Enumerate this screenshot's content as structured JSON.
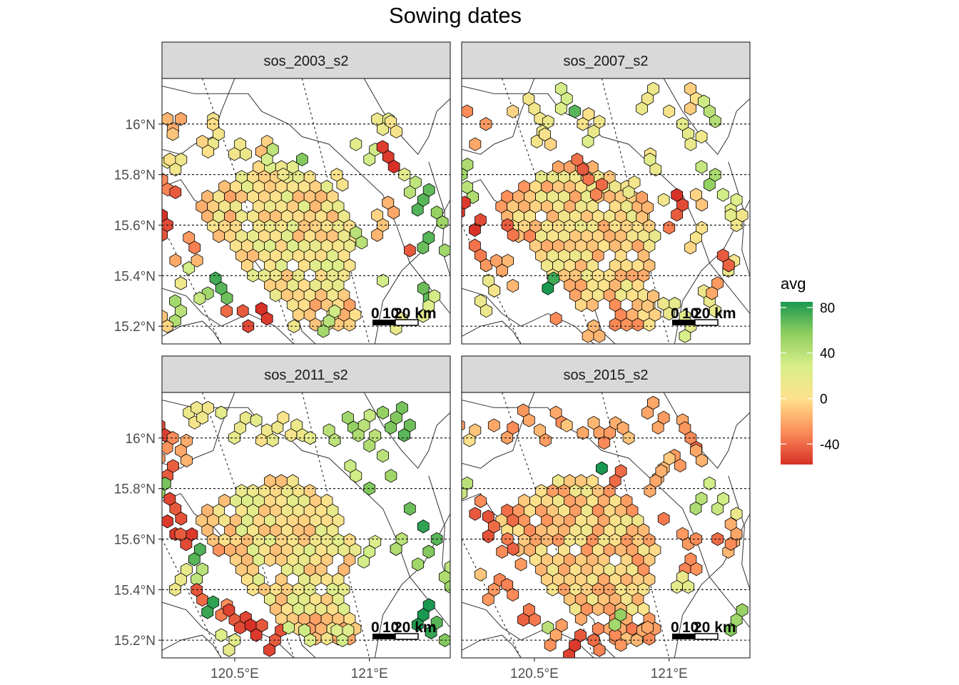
{
  "chart_data": {
    "type": "heatmap",
    "title": "Sowing dates",
    "xlabel": "",
    "ylabel": "",
    "x_ticks": [
      120.5,
      121.0
    ],
    "x_tick_labels": [
      "120.5°E",
      "121°E"
    ],
    "y_ticks": [
      15.2,
      15.4,
      15.6,
      15.8,
      16.0
    ],
    "y_tick_labels": [
      "15.2°N",
      "15.4°N",
      "15.6°N",
      "15.8°N",
      "16°N"
    ],
    "xlim": [
      120.23,
      121.3
    ],
    "ylim": [
      15.13,
      16.18
    ],
    "grid": "dotted latitude lines",
    "legend": {
      "title": "avg",
      "position": "right",
      "min": -58,
      "max": 85,
      "ticks": [
        80,
        40,
        0,
        -40
      ],
      "tick_labels": [
        "80",
        "40",
        "0",
        "-40"
      ],
      "colors": [
        "#d73027",
        "#fc8d59",
        "#fee08b",
        "#d9ef8b",
        "#91cf60",
        "#1a9850"
      ]
    },
    "scale_bar_labels": [
      "0",
      "10",
      "20 km"
    ],
    "panels": [
      {
        "name": "sos_2003_s2",
        "hex_centers": [
          [
            120.25,
            16.02,
            -15
          ],
          [
            120.3,
            16.02,
            -20
          ],
          [
            120.27,
            15.96,
            -10
          ],
          [
            120.42,
            16.02,
            5
          ],
          [
            120.44,
            15.96,
            8
          ],
          [
            120.38,
            15.93,
            -5
          ],
          [
            120.52,
            15.92,
            10
          ],
          [
            120.62,
            15.93,
            -5
          ],
          [
            120.25,
            15.85,
            15
          ],
          [
            120.28,
            15.82,
            10
          ],
          [
            120.23,
            15.78,
            -30
          ],
          [
            120.28,
            15.73,
            -45
          ],
          [
            120.25,
            15.6,
            -50
          ],
          [
            120.33,
            15.55,
            -25
          ],
          [
            120.28,
            15.46,
            -20
          ],
          [
            120.33,
            15.43,
            30
          ],
          [
            120.36,
            15.46,
            -15
          ],
          [
            120.4,
            15.33,
            50
          ],
          [
            120.3,
            15.37,
            10
          ],
          [
            120.37,
            15.31,
            35
          ],
          [
            120.3,
            15.26,
            40
          ],
          [
            120.25,
            15.2,
            -5
          ],
          [
            120.45,
            15.35,
            70
          ],
          [
            120.47,
            15.26,
            -40
          ],
          [
            120.53,
            15.26,
            -45
          ],
          [
            120.55,
            15.2,
            -50
          ],
          [
            120.62,
            15.23,
            -55
          ],
          [
            120.72,
            15.2,
            10
          ],
          [
            120.85,
            15.22,
            40
          ],
          [
            120.95,
            15.92,
            20
          ],
          [
            121.05,
            15.98,
            15
          ],
          [
            121.1,
            15.97,
            5
          ],
          [
            121.0,
            15.86,
            30
          ],
          [
            121.07,
            15.87,
            -55
          ],
          [
            121.13,
            15.8,
            20
          ],
          [
            121.15,
            15.73,
            40
          ],
          [
            121.2,
            15.7,
            70
          ],
          [
            121.25,
            15.65,
            55
          ],
          [
            121.22,
            15.55,
            70
          ],
          [
            121.28,
            15.5,
            50
          ],
          [
            121.15,
            15.5,
            -45
          ],
          [
            121.05,
            15.6,
            -10
          ],
          [
            121.09,
            15.65,
            -20
          ],
          [
            121.2,
            15.35,
            65
          ],
          [
            121.22,
            15.28,
            25
          ],
          [
            121.12,
            15.23,
            15
          ],
          [
            120.62,
            15.86,
            30
          ],
          [
            120.75,
            15.86,
            60
          ],
          [
            120.68,
            15.8,
            10
          ],
          [
            120.9,
            15.76,
            5
          ],
          [
            120.95,
            15.57,
            40
          ],
          [
            121.05,
            15.38,
            30
          ]
        ],
        "central_fill": "mostly 0 to 20 with -20 to -30 edges"
      },
      {
        "name": "sos_2007_s2",
        "hex_centers": [
          [
            120.25,
            16.05,
            -30
          ],
          [
            120.32,
            16.0,
            -25
          ],
          [
            120.28,
            15.92,
            -20
          ],
          [
            120.42,
            16.05,
            -5
          ],
          [
            120.5,
            16.06,
            10
          ],
          [
            120.62,
            16.1,
            30
          ],
          [
            120.65,
            16.05,
            70
          ],
          [
            120.68,
            16.0,
            5
          ],
          [
            120.53,
            15.97,
            10
          ],
          [
            120.56,
            15.92,
            -5
          ],
          [
            120.72,
            15.97,
            15
          ],
          [
            120.92,
            16.1,
            10
          ],
          [
            121.0,
            16.05,
            5
          ],
          [
            121.05,
            16.0,
            20
          ],
          [
            121.1,
            16.1,
            0
          ],
          [
            121.15,
            16.05,
            40
          ],
          [
            121.12,
            15.95,
            10
          ],
          [
            121.08,
            15.92,
            15
          ],
          [
            120.93,
            15.88,
            5
          ],
          [
            120.95,
            15.82,
            15
          ],
          [
            121.12,
            15.83,
            35
          ],
          [
            121.15,
            15.76,
            55
          ],
          [
            121.2,
            15.72,
            30
          ],
          [
            121.25,
            15.7,
            25
          ],
          [
            120.23,
            15.8,
            50
          ],
          [
            120.25,
            15.75,
            40
          ],
          [
            120.22,
            15.65,
            -55
          ],
          [
            120.3,
            15.62,
            -50
          ],
          [
            120.4,
            15.6,
            -45
          ],
          [
            120.3,
            15.48,
            -35
          ],
          [
            120.38,
            15.42,
            -20
          ],
          [
            120.42,
            15.36,
            -15
          ],
          [
            120.33,
            15.38,
            15
          ],
          [
            120.3,
            15.3,
            15
          ],
          [
            120.55,
            15.35,
            85
          ],
          [
            120.58,
            15.23,
            -30
          ],
          [
            120.72,
            15.2,
            -15
          ],
          [
            120.92,
            15.28,
            -10
          ],
          [
            121.0,
            15.25,
            15
          ],
          [
            121.08,
            15.2,
            20
          ],
          [
            121.15,
            15.3,
            15
          ],
          [
            121.18,
            15.37,
            -25
          ],
          [
            121.22,
            15.42,
            15
          ],
          [
            121.25,
            15.6,
            10
          ],
          [
            121.2,
            15.48,
            -45
          ],
          [
            121.05,
            15.68,
            -50
          ],
          [
            121.1,
            15.72,
            -5
          ],
          [
            120.98,
            15.7,
            10
          ],
          [
            120.68,
            15.82,
            -45
          ],
          [
            120.75,
            15.76,
            -40
          ],
          [
            120.85,
            15.73,
            15
          ],
          [
            120.92,
            15.67,
            -15
          ],
          [
            121.0,
            15.59,
            -35
          ],
          [
            121.1,
            15.55,
            5
          ]
        ],
        "central_fill": "mostly 0 to 20 with -30 to -50 west edge"
      },
      {
        "name": "sos_2011_s2",
        "hex_centers": [
          [
            120.33,
            16.1,
            15
          ],
          [
            120.38,
            16.08,
            10
          ],
          [
            120.45,
            16.1,
            20
          ],
          [
            120.52,
            16.04,
            15
          ],
          [
            120.58,
            16.07,
            20
          ],
          [
            120.62,
            16.03,
            10
          ],
          [
            120.68,
            16.08,
            5
          ],
          [
            120.73,
            16.05,
            15
          ],
          [
            120.78,
            16.0,
            20
          ],
          [
            120.85,
            16.03,
            40
          ],
          [
            120.92,
            16.08,
            50
          ],
          [
            120.98,
            16.05,
            40
          ],
          [
            121.05,
            16.1,
            55
          ],
          [
            121.1,
            16.08,
            60
          ],
          [
            121.15,
            16.05,
            65
          ],
          [
            121.0,
            15.97,
            45
          ],
          [
            121.05,
            15.93,
            40
          ],
          [
            121.08,
            15.85,
            50
          ],
          [
            121.0,
            15.8,
            60
          ],
          [
            120.95,
            15.85,
            30
          ],
          [
            120.22,
            16.05,
            -50
          ],
          [
            120.27,
            16.0,
            -30
          ],
          [
            120.22,
            15.92,
            -25
          ],
          [
            120.3,
            15.95,
            -20
          ],
          [
            120.25,
            15.85,
            -45
          ],
          [
            120.22,
            15.78,
            55
          ],
          [
            120.28,
            15.72,
            -45
          ],
          [
            120.25,
            15.67,
            -55
          ],
          [
            120.28,
            15.62,
            -55
          ],
          [
            120.32,
            15.58,
            -50
          ],
          [
            120.35,
            15.52,
            70
          ],
          [
            120.38,
            15.48,
            40
          ],
          [
            120.3,
            15.44,
            15
          ],
          [
            120.38,
            15.36,
            -40
          ],
          [
            120.42,
            15.35,
            80
          ],
          [
            120.45,
            15.3,
            -35
          ],
          [
            120.5,
            15.28,
            -45
          ],
          [
            120.52,
            15.25,
            -50
          ],
          [
            120.58,
            15.22,
            -55
          ],
          [
            120.65,
            15.2,
            -45
          ],
          [
            120.7,
            15.25,
            30
          ],
          [
            120.78,
            15.2,
            25
          ],
          [
            120.9,
            15.2,
            30
          ],
          [
            120.5,
            15.2,
            20
          ],
          [
            120.45,
            15.22,
            25
          ],
          [
            121.2,
            15.3,
            85
          ],
          [
            121.25,
            15.27,
            70
          ],
          [
            121.28,
            15.2,
            60
          ],
          [
            121.15,
            15.72,
            65
          ],
          [
            121.2,
            15.65,
            80
          ],
          [
            121.25,
            15.6,
            70
          ],
          [
            121.22,
            15.55,
            60
          ],
          [
            121.18,
            15.5,
            50
          ],
          [
            121.28,
            15.45,
            45
          ],
          [
            121.12,
            15.6,
            40
          ],
          [
            121.0,
            15.55,
            30
          ]
        ],
        "central_fill": "mostly 0 to 25 with -20 edges"
      },
      {
        "name": "sos_2015_s2",
        "hex_centers": [
          [
            120.22,
            16.05,
            -25
          ],
          [
            120.28,
            16.03,
            -10
          ],
          [
            120.35,
            16.05,
            -20
          ],
          [
            120.42,
            16.04,
            -30
          ],
          [
            120.48,
            16.07,
            -20
          ],
          [
            120.52,
            16.03,
            -15
          ],
          [
            120.58,
            16.1,
            -20
          ],
          [
            120.62,
            16.05,
            -10
          ],
          [
            120.68,
            16.02,
            -20
          ],
          [
            120.72,
            16.06,
            -15
          ],
          [
            120.78,
            16.02,
            -25
          ],
          [
            120.85,
            16.0,
            -10
          ],
          [
            120.92,
            16.1,
            -20
          ],
          [
            120.98,
            16.08,
            -25
          ],
          [
            121.05,
            16.07,
            -20
          ],
          [
            121.08,
            16.0,
            -30
          ],
          [
            121.1,
            15.95,
            -20
          ],
          [
            121.02,
            15.93,
            -25
          ],
          [
            120.98,
            15.88,
            -15
          ],
          [
            120.95,
            15.83,
            -20
          ],
          [
            121.15,
            15.82,
            30
          ],
          [
            121.12,
            15.76,
            40
          ],
          [
            121.18,
            15.72,
            35
          ],
          [
            121.25,
            15.7,
            15
          ],
          [
            120.25,
            15.82,
            40
          ],
          [
            120.3,
            15.75,
            -30
          ],
          [
            120.28,
            15.7,
            -45
          ],
          [
            120.35,
            15.65,
            -40
          ],
          [
            120.4,
            15.6,
            -35
          ],
          [
            120.38,
            15.55,
            -30
          ],
          [
            120.45,
            15.5,
            -25
          ],
          [
            120.3,
            15.46,
            -10
          ],
          [
            120.35,
            15.4,
            -25
          ],
          [
            120.42,
            15.38,
            -30
          ],
          [
            120.48,
            15.32,
            -35
          ],
          [
            120.55,
            15.25,
            40
          ],
          [
            120.58,
            15.22,
            -20
          ],
          [
            120.65,
            15.18,
            -55
          ],
          [
            120.72,
            15.2,
            -40
          ],
          [
            120.8,
            15.22,
            -30
          ],
          [
            120.88,
            15.2,
            -15
          ],
          [
            120.92,
            15.25,
            -20
          ],
          [
            120.82,
            15.3,
            55
          ],
          [
            120.75,
            15.88,
            85
          ],
          [
            120.8,
            15.83,
            -40
          ],
          [
            120.98,
            15.68,
            -35
          ],
          [
            121.05,
            15.62,
            -25
          ],
          [
            121.1,
            15.6,
            -30
          ],
          [
            121.18,
            15.6,
            -40
          ],
          [
            121.22,
            15.55,
            -15
          ],
          [
            121.25,
            15.62,
            -20
          ],
          [
            121.08,
            15.52,
            -30
          ],
          [
            121.05,
            15.45,
            15
          ],
          [
            121.25,
            15.28,
            50
          ]
        ],
        "central_fill": "mostly -10 to 20 with -30 edges"
      }
    ]
  }
}
